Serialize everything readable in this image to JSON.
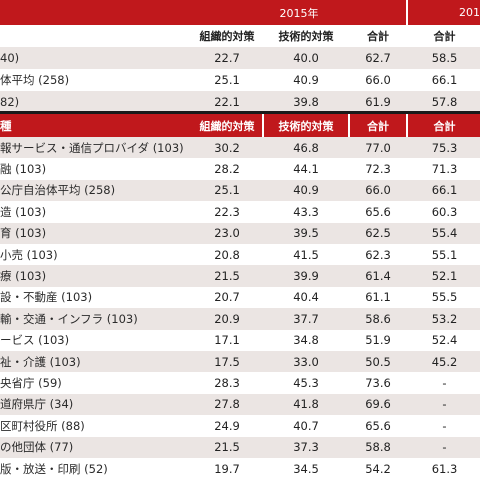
{
  "header": {
    "year_2015": "2015年",
    "year_next_partial": "201"
  },
  "columns": [
    "組織的対策",
    "技術的対策",
    "合計",
    "合計"
  ],
  "section2_header_label": "種",
  "top_rows": [
    {
      "label": "40)",
      "v1": "22.7",
      "v2": "40.0",
      "v3": "62.7",
      "v4": "58.5"
    },
    {
      "label": "体平均 (258)",
      "v1": "25.1",
      "v2": "40.9",
      "v3": "66.0",
      "v4": "66.1"
    },
    {
      "label": "82)",
      "v1": "22.1",
      "v2": "39.8",
      "v3": "61.9",
      "v4": "57.8"
    }
  ],
  "rows": [
    {
      "label": "報サービス・通信プロバイダ (103)",
      "v1": "30.2",
      "v2": "46.8",
      "v3": "77.0",
      "v4": "75.3"
    },
    {
      "label": "融 (103)",
      "v1": "28.2",
      "v2": "44.1",
      "v3": "72.3",
      "v4": "71.3"
    },
    {
      "label": "公庁自治体平均 (258)",
      "v1": "25.1",
      "v2": "40.9",
      "v3": "66.0",
      "v4": "66.1"
    },
    {
      "label": "造 (103)",
      "v1": "22.3",
      "v2": "43.3",
      "v3": "65.6",
      "v4": "60.3"
    },
    {
      "label": "育 (103)",
      "v1": "23.0",
      "v2": "39.5",
      "v3": "62.5",
      "v4": "55.4"
    },
    {
      "label": "小売 (103)",
      "v1": "20.8",
      "v2": "41.5",
      "v3": "62.3",
      "v4": "55.1"
    },
    {
      "label": "療 (103)",
      "v1": "21.5",
      "v2": "39.9",
      "v3": "61.4",
      "v4": "52.1"
    },
    {
      "label": "設・不動産 (103)",
      "v1": "20.7",
      "v2": "40.4",
      "v3": "61.1",
      "v4": "55.5"
    },
    {
      "label": "輸・交通・インフラ (103)",
      "v1": "20.9",
      "v2": "37.7",
      "v3": "58.6",
      "v4": "53.2"
    },
    {
      "label": "ービス (103)",
      "v1": "17.1",
      "v2": "34.8",
      "v3": "51.9",
      "v4": "52.4"
    },
    {
      "label": "祉・介護 (103)",
      "v1": "17.5",
      "v2": "33.0",
      "v3": "50.5",
      "v4": "45.2"
    },
    {
      "label": "央省庁 (59)",
      "v1": "28.3",
      "v2": "45.3",
      "v3": "73.6",
      "v4": "-"
    },
    {
      "label": "道府県庁 (34)",
      "v1": "27.8",
      "v2": "41.8",
      "v3": "69.6",
      "v4": "-"
    },
    {
      "label": "区町村役所 (88)",
      "v1": "24.9",
      "v2": "40.7",
      "v3": "65.6",
      "v4": "-"
    },
    {
      "label": "の他団体 (77)",
      "v1": "21.5",
      "v2": "37.3",
      "v3": "58.8",
      "v4": "-"
    },
    {
      "label": "版・放送・印刷 (52)",
      "v1": "19.7",
      "v2": "34.5",
      "v3": "54.2",
      "v4": "61.3"
    }
  ]
}
